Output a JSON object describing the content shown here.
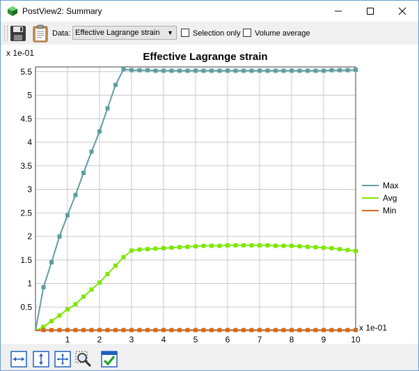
{
  "window": {
    "title": "PostView2: Summary",
    "minimize_icon": "minimize-icon",
    "maximize_icon": "maximize-icon",
    "close_icon": "close-icon"
  },
  "toolbar": {
    "data_label": "Data:",
    "data_value": "Effective Lagrange strain",
    "selection_only_label": "Selection only",
    "selection_only_checked": false,
    "volume_average_label": "Volume average",
    "volume_average_checked": false
  },
  "bottom_toolbar": {
    "icons": [
      "fit-width-icon",
      "fit-height-icon",
      "fit-all-icon",
      "zoom-select-icon",
      "options-check-icon"
    ]
  },
  "chart_data": {
    "type": "line",
    "title": "Effective Lagrange strain",
    "x_multiplier_label": "x 1e-01",
    "y_multiplier_label": "x 1e-01",
    "xlim": [
      0,
      10
    ],
    "ylim": [
      0,
      5.6
    ],
    "x_ticks": [
      "1",
      "2",
      "3",
      "4",
      "5",
      "6",
      "7",
      "8",
      "9",
      "10"
    ],
    "y_ticks": [
      "0.5",
      "1",
      "1.5",
      "2",
      "2.5",
      "3",
      "3.5",
      "4",
      "4.5",
      "5",
      "5.5"
    ],
    "grid": true,
    "legend_position": "right",
    "x": [
      0,
      0.25,
      0.5,
      0.75,
      1.0,
      1.25,
      1.5,
      1.75,
      2.0,
      2.25,
      2.5,
      2.75,
      3.0,
      3.25,
      3.5,
      3.75,
      4.0,
      4.25,
      4.5,
      4.75,
      5.0,
      5.25,
      5.5,
      5.75,
      6.0,
      6.25,
      6.5,
      6.75,
      7.0,
      7.25,
      7.5,
      7.75,
      8.0,
      8.25,
      8.5,
      8.75,
      9.0,
      9.25,
      9.5,
      9.75,
      10.0
    ],
    "series": [
      {
        "name": "Max",
        "color": "#5f9ea0",
        "values": [
          0,
          0.92,
          1.45,
          2.0,
          2.45,
          2.88,
          3.35,
          3.8,
          4.23,
          4.72,
          5.22,
          5.55,
          5.53,
          5.53,
          5.53,
          5.52,
          5.52,
          5.52,
          5.52,
          5.52,
          5.52,
          5.52,
          5.52,
          5.52,
          5.52,
          5.52,
          5.52,
          5.52,
          5.52,
          5.52,
          5.52,
          5.52,
          5.52,
          5.52,
          5.52,
          5.52,
          5.52,
          5.53,
          5.53,
          5.53,
          5.54
        ]
      },
      {
        "name": "Avg",
        "color": "#7fe600",
        "values": [
          0,
          0.08,
          0.2,
          0.32,
          0.45,
          0.56,
          0.72,
          0.87,
          1.02,
          1.2,
          1.38,
          1.56,
          1.7,
          1.72,
          1.73,
          1.74,
          1.75,
          1.76,
          1.77,
          1.78,
          1.79,
          1.8,
          1.8,
          1.8,
          1.81,
          1.81,
          1.81,
          1.81,
          1.81,
          1.81,
          1.8,
          1.8,
          1.8,
          1.79,
          1.78,
          1.77,
          1.76,
          1.75,
          1.73,
          1.71,
          1.69
        ]
      },
      {
        "name": "Min",
        "color": "#d2691e",
        "values": [
          0,
          0.01,
          0.01,
          0.01,
          0.01,
          0.01,
          0.01,
          0.01,
          0.01,
          0.01,
          0.01,
          0.01,
          0.01,
          0.01,
          0.01,
          0.01,
          0.01,
          0.01,
          0.01,
          0.01,
          0.01,
          0.01,
          0.01,
          0.01,
          0.01,
          0.01,
          0.01,
          0.01,
          0.01,
          0.01,
          0.01,
          0.01,
          0.01,
          0.01,
          0.01,
          0.01,
          0.01,
          0.01,
          0.01,
          0.01,
          0.01
        ]
      }
    ]
  }
}
